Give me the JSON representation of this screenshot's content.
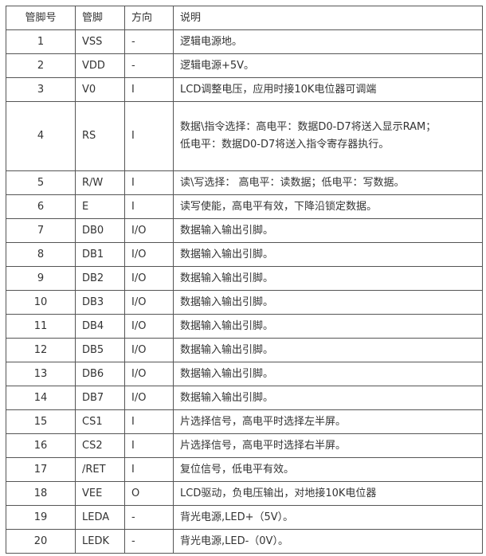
{
  "headers": [
    "管脚号",
    "管脚",
    "方向",
    "说明"
  ],
  "rows": [
    {
      "num": "1",
      "pin": "VSS",
      "dir": "-",
      "desc": [
        "逻辑电源地。"
      ]
    },
    {
      "num": "2",
      "pin": "VDD",
      "dir": "-",
      "desc": [
        "逻辑电源+5V。"
      ]
    },
    {
      "num": "3",
      "pin": "V0",
      "dir": "I",
      "desc": [
        "LCD调整电压，应用时接10K电位器可调端"
      ]
    },
    {
      "num": "4",
      "pin": "RS",
      "dir": "I",
      "desc": [
        "数据\\指令选择：高电平：数据D0-D7将送入显示RAM；",
        "低电平：数据D0-D7将送入指令寄存器执行。"
      ]
    },
    {
      "num": "5",
      "pin": "R/W",
      "dir": "I",
      "desc": [
        "读\\写选择： 高电平：读数据；低电平：写数据。"
      ]
    },
    {
      "num": "6",
      "pin": "E",
      "dir": "I",
      "desc": [
        "读写使能，高电平有效，下降沿锁定数据。"
      ]
    },
    {
      "num": "7",
      "pin": "DB0",
      "dir": "I/O",
      "desc": [
        "数据输入输出引脚。"
      ]
    },
    {
      "num": "8",
      "pin": "DB1",
      "dir": "I/O",
      "desc": [
        "数据输入输出引脚。"
      ]
    },
    {
      "num": "9",
      "pin": "DB2",
      "dir": "I/O",
      "desc": [
        "数据输入输出引脚。"
      ]
    },
    {
      "num": "10",
      "pin": "DB3",
      "dir": "I/O",
      "desc": [
        "数据输入输出引脚。"
      ]
    },
    {
      "num": "11",
      "pin": "DB4",
      "dir": "I/O",
      "desc": [
        "数据输入输出引脚。"
      ]
    },
    {
      "num": "12",
      "pin": "DB5",
      "dir": "I/O",
      "desc": [
        "数据输入输出引脚。"
      ]
    },
    {
      "num": "13",
      "pin": "DB6",
      "dir": "I/O",
      "desc": [
        "数据输入输出引脚。"
      ]
    },
    {
      "num": "14",
      "pin": "DB7",
      "dir": "I/O",
      "desc": [
        "数据输入输出引脚。"
      ]
    },
    {
      "num": "15",
      "pin": "CS1",
      "dir": "I",
      "desc": [
        "片选择信号，高电平时选择左半屏。"
      ]
    },
    {
      "num": "16",
      "pin": "CS2",
      "dir": "I",
      "desc": [
        "片选择信号，高电平时选择右半屏。"
      ]
    },
    {
      "num": "17",
      "pin": "/RET",
      "dir": "I",
      "desc": [
        "复位信号，低电平有效。"
      ]
    },
    {
      "num": "18",
      "pin": "VEE",
      "dir": "O",
      "desc": [
        "LCD驱动，负电压输出，对地接10K电位器"
      ]
    },
    {
      "num": "19",
      "pin": "LEDA",
      "dir": "-",
      "desc": [
        "背光电源,LED+（5V）。"
      ]
    },
    {
      "num": "20",
      "pin": "LEDK",
      "dir": "-",
      "desc": [
        "背光电源,LED-（0V）。"
      ]
    }
  ]
}
